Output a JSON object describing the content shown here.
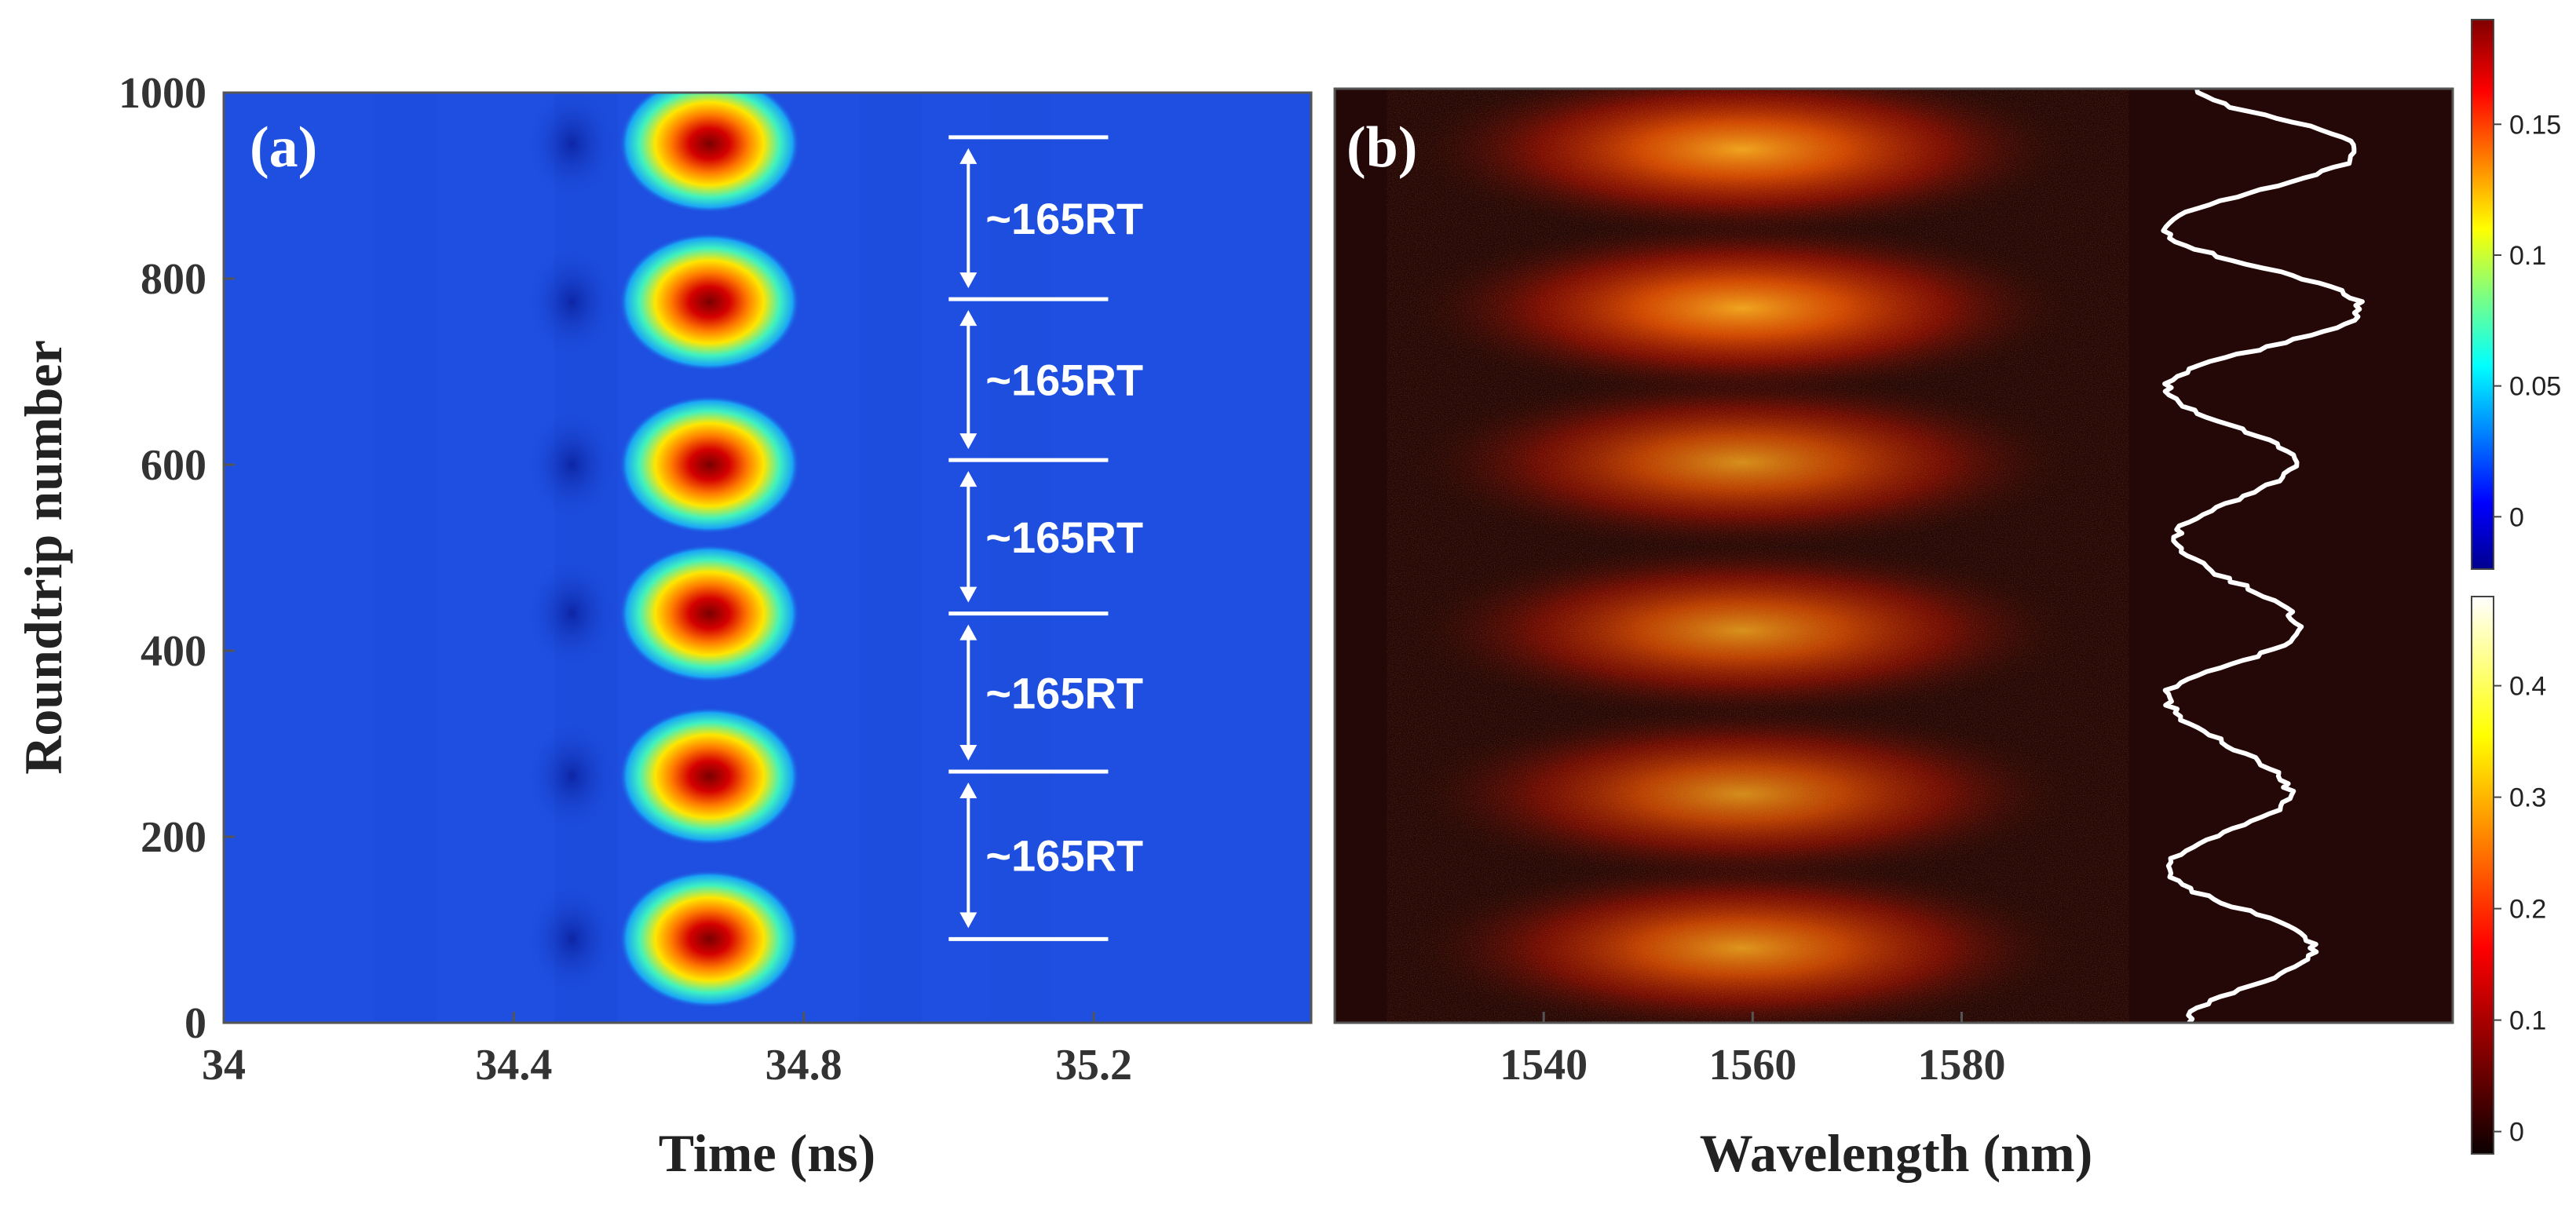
{
  "chart_data": [
    {
      "panel": "(a)",
      "type": "heatmap",
      "xlabel": "Time (ns)",
      "ylabel": "Roundtrip number",
      "xlim": [
        34,
        35.5
      ],
      "ylim": [
        0,
        1000
      ],
      "xticks": [
        "34",
        "34.4",
        "34.8",
        "35.2"
      ],
      "xtick_values": [
        34,
        34.4,
        34.8,
        35.2
      ],
      "yticks": [
        "0",
        "200",
        "400",
        "600",
        "800",
        "1000"
      ],
      "ytick_values": [
        0,
        200,
        400,
        600,
        800,
        1000
      ],
      "pulse_center_time_ns": 34.67,
      "pulse_roundtrips": [
        90,
        265,
        440,
        600,
        775,
        945
      ],
      "period_markers": [
        90,
        270,
        440,
        605,
        778,
        952
      ],
      "period_label": "~165RT",
      "period_line_time_range_ns": [
        35.0,
        35.22
      ],
      "colorscale": "jet",
      "background_color": "#1e4fe0"
    },
    {
      "panel": "(b)",
      "type": "heatmap",
      "xlabel": "Wavelength (nm)",
      "xticks": [
        "1540",
        "1560",
        "1580"
      ],
      "xtick_values": [
        1540,
        1560,
        1580
      ],
      "xlim": [
        1520,
        1627
      ],
      "ylim": [
        0,
        1000
      ],
      "spectrum_center_nm": 1559,
      "colorscale": "hot",
      "background_color": "#240707",
      "energy_trace": {
        "color": "#ffffff",
        "peaks": [
          {
            "roundtrip": 80,
            "level": 0.72
          },
          {
            "roundtrip": 245,
            "level": 0.6
          },
          {
            "roundtrip": 420,
            "level": 0.65
          },
          {
            "roundtrip": 600,
            "level": 0.62
          },
          {
            "roundtrip": 765,
            "level": 0.95
          },
          {
            "roundtrip": 935,
            "level": 0.94
          }
        ],
        "troughs": [
          {
            "roundtrip": 0,
            "level": 0.1
          },
          {
            "roundtrip": 165,
            "level": 0.0
          },
          {
            "roundtrip": 350,
            "level": 0.0
          },
          {
            "roundtrip": 520,
            "level": 0.05
          },
          {
            "roundtrip": 680,
            "level": 0.0
          },
          {
            "roundtrip": 850,
            "level": 0.0
          },
          {
            "roundtrip": 1000,
            "level": 0.15
          }
        ]
      }
    }
  ],
  "colorbars": [
    {
      "name": "colorbar-top",
      "colorscale": "jet",
      "ticks": [
        "0.15",
        "0.1",
        "0.05",
        "0"
      ],
      "tick_values": [
        0.15,
        0.1,
        0.05,
        0
      ],
      "range": [
        -0.02,
        0.19
      ]
    },
    {
      "name": "colorbar-bottom",
      "colorscale": "hot",
      "ticks": [
        "0.4",
        "0.3",
        "0.2",
        "0.1",
        "0"
      ],
      "tick_values": [
        0.4,
        0.3,
        0.2,
        0.1,
        0
      ],
      "range": [
        -0.02,
        0.48
      ]
    }
  ]
}
